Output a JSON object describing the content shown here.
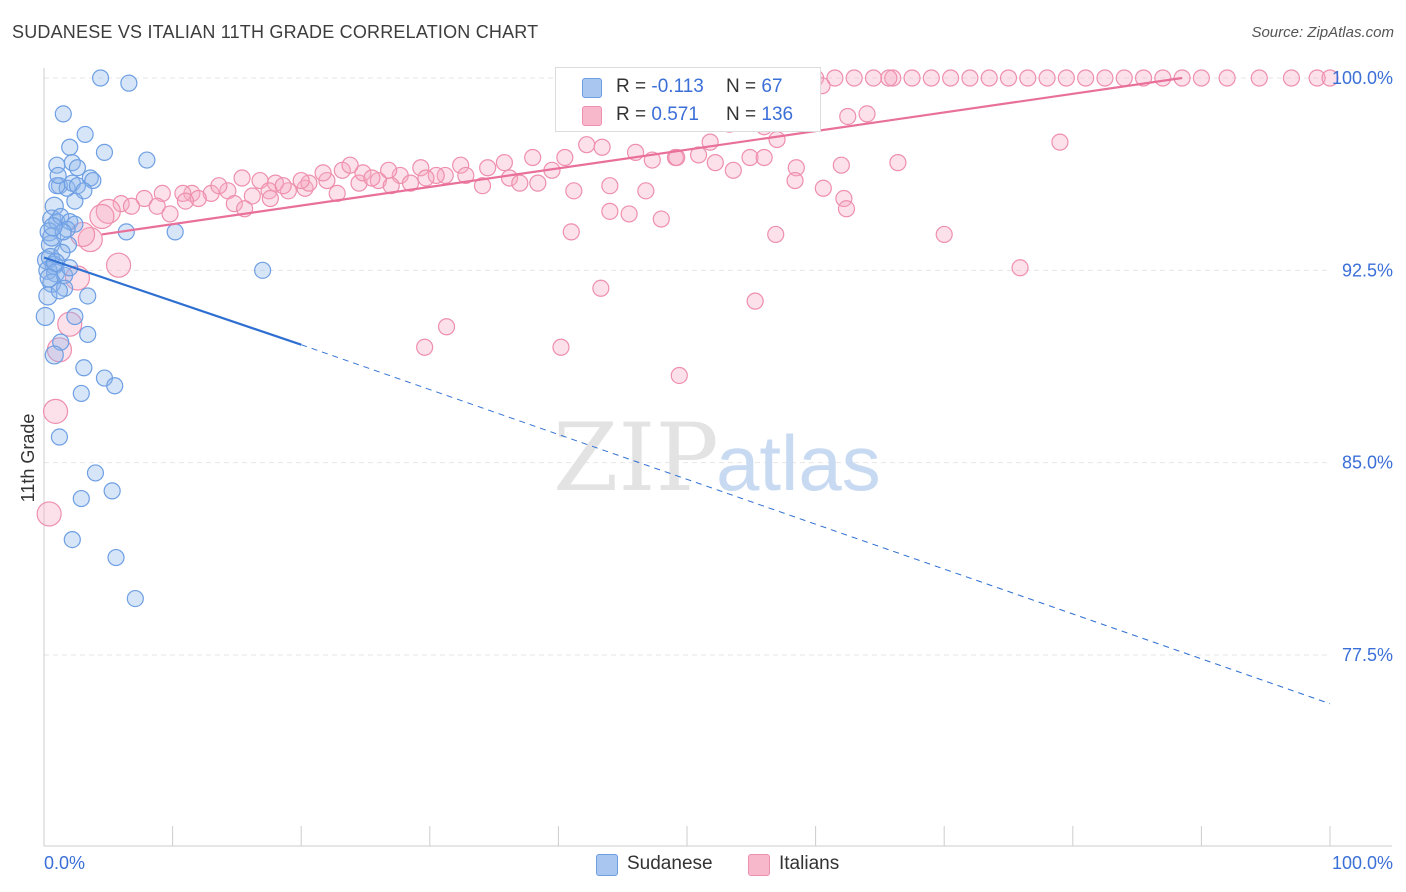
{
  "title": "SUDANESE VS ITALIAN 11TH GRADE CORRELATION CHART",
  "source": "Source: ZipAtlas.com",
  "watermark": {
    "zip": "ZIP",
    "atlas": "atlas"
  },
  "legend": {
    "r_label": "R =",
    "n_label": "N =",
    "rows": [
      {
        "r": "-0.113",
        "n": "67",
        "color": "#a9c6f0"
      },
      {
        "r": "0.571",
        "n": "136",
        "color": "#f7b8cb"
      }
    ]
  },
  "bottom_legend": [
    "Sudanese",
    "Italians"
  ],
  "colors": {
    "blue": "#6e9fe3",
    "blue_fill": "rgba(140,180,235,0.35)",
    "blue_line": "#2e6fd1",
    "pink": "#ee8fad",
    "pink_fill": "rgba(245,170,195,0.35)",
    "pink_line": "#e8709a",
    "axis_text": "#3b6fd8",
    "grid": "#e6e6e6"
  },
  "chart_data": {
    "type": "scatter",
    "title": "SUDANESE VS ITALIAN 11TH GRADE CORRELATION CHART",
    "xlabel": "",
    "ylabel": "11th Grade",
    "xlim": [
      0,
      100
    ],
    "ylim": [
      70,
      100.5
    ],
    "x_tick_labels": [
      "0.0%",
      "100.0%"
    ],
    "y_ticks": [
      77.5,
      85.0,
      92.5,
      100.0
    ],
    "y_tick_labels": [
      "77.5%",
      "85.0%",
      "92.5%",
      "100.0%"
    ],
    "grid": true,
    "legend_placement": "top-center",
    "series": [
      {
        "name": "Sudanese",
        "R": -0.113,
        "N": 67,
        "trend": {
          "x0": 0,
          "y0": 93.0,
          "x1": 20,
          "y1": 89.6,
          "dash_to_x": 100,
          "dash_to_y": 75.6
        },
        "points": [
          [
            4.4,
            100
          ],
          [
            6.6,
            99.8
          ],
          [
            1.5,
            98.6
          ],
          [
            3.2,
            97.8
          ],
          [
            4.7,
            97.1
          ],
          [
            8.0,
            96.8
          ],
          [
            2.0,
            97.3
          ],
          [
            1.0,
            96.6
          ],
          [
            2.2,
            96.7
          ],
          [
            2.6,
            96.5
          ],
          [
            3.6,
            96.1
          ],
          [
            3.8,
            96.0
          ],
          [
            1.2,
            95.8
          ],
          [
            1.8,
            95.7
          ],
          [
            2.2,
            95.9
          ],
          [
            2.6,
            95.8
          ],
          [
            1.0,
            95.8
          ],
          [
            0.8,
            95.0
          ],
          [
            2.4,
            95.2
          ],
          [
            0.6,
            94.5
          ],
          [
            1.0,
            94.4
          ],
          [
            1.3,
            94.6
          ],
          [
            2.0,
            94.4
          ],
          [
            2.4,
            94.3
          ],
          [
            0.4,
            94.0
          ],
          [
            1.8,
            94.1
          ],
          [
            6.4,
            94.0
          ],
          [
            10.2,
            94.0
          ],
          [
            0.5,
            93.5
          ],
          [
            1.9,
            93.5
          ],
          [
            0.2,
            92.9
          ],
          [
            0.5,
            93.0
          ],
          [
            0.8,
            92.7
          ],
          [
            0.3,
            92.5
          ],
          [
            0.9,
            92.4
          ],
          [
            1.6,
            92.3
          ],
          [
            0.6,
            92.0
          ],
          [
            1.6,
            91.8
          ],
          [
            0.3,
            91.5
          ],
          [
            3.4,
            91.5
          ],
          [
            17.0,
            92.5
          ],
          [
            0.1,
            90.7
          ],
          [
            2.4,
            90.7
          ],
          [
            3.4,
            90.0
          ],
          [
            1.3,
            89.7
          ],
          [
            0.8,
            89.2
          ],
          [
            3.1,
            88.7
          ],
          [
            4.7,
            88.3
          ],
          [
            5.5,
            88.0
          ],
          [
            2.9,
            87.7
          ],
          [
            1.2,
            86.0
          ],
          [
            4.0,
            84.6
          ],
          [
            5.3,
            83.9
          ],
          [
            2.9,
            83.6
          ],
          [
            2.2,
            82.0
          ],
          [
            5.6,
            81.3
          ],
          [
            7.1,
            79.7
          ],
          [
            0.6,
            93.8
          ],
          [
            1.4,
            93.2
          ],
          [
            0.9,
            92.8
          ],
          [
            1.5,
            94.0
          ],
          [
            3.1,
            95.6
          ],
          [
            1.1,
            96.2
          ],
          [
            0.7,
            94.2
          ],
          [
            2.0,
            92.6
          ],
          [
            1.2,
            91.7
          ],
          [
            0.4,
            92.2
          ]
        ]
      },
      {
        "name": "Italians",
        "R": 0.571,
        "N": 136,
        "trend": {
          "x0": 4.5,
          "y0": 93.9,
          "x1": 88.5,
          "y1": 100.0
        },
        "points": [
          [
            55,
            100
          ],
          [
            57,
            100
          ],
          [
            58.5,
            100
          ],
          [
            60,
            100
          ],
          [
            61.5,
            100
          ],
          [
            63,
            100
          ],
          [
            64.5,
            100
          ],
          [
            66,
            100
          ],
          [
            67.5,
            100
          ],
          [
            69,
            100
          ],
          [
            70.5,
            100
          ],
          [
            72,
            100
          ],
          [
            73.5,
            100
          ],
          [
            75,
            100
          ],
          [
            76.5,
            100
          ],
          [
            78,
            100
          ],
          [
            79.5,
            100
          ],
          [
            81,
            100
          ],
          [
            82.5,
            100
          ],
          [
            84,
            100
          ],
          [
            85.5,
            100
          ],
          [
            87,
            100
          ],
          [
            88.5,
            100
          ],
          [
            90,
            100
          ],
          [
            92,
            100
          ],
          [
            94.5,
            100
          ],
          [
            97,
            100
          ],
          [
            99,
            100
          ],
          [
            100,
            100
          ],
          [
            65.7,
            100
          ],
          [
            60.5,
            99.7
          ],
          [
            62.5,
            98.5
          ],
          [
            64,
            98.6
          ],
          [
            56.0,
            98.1
          ],
          [
            53.3,
            98.2
          ],
          [
            51.8,
            97.5
          ],
          [
            42.2,
            97.4
          ],
          [
            43.4,
            97.3
          ],
          [
            46.0,
            97.1
          ],
          [
            47.3,
            96.8
          ],
          [
            49.1,
            96.9
          ],
          [
            50.9,
            97.0
          ],
          [
            52.2,
            96.7
          ],
          [
            54.9,
            96.9
          ],
          [
            57.0,
            97.6
          ],
          [
            56.0,
            96.9
          ],
          [
            53.6,
            96.4
          ],
          [
            58.5,
            96.5
          ],
          [
            62.0,
            96.6
          ],
          [
            66.4,
            96.7
          ],
          [
            79.0,
            97.5
          ],
          [
            38.0,
            96.9
          ],
          [
            40.5,
            96.9
          ],
          [
            35.8,
            96.7
          ],
          [
            34.5,
            96.5
          ],
          [
            32.4,
            96.6
          ],
          [
            31.2,
            96.2
          ],
          [
            29.3,
            96.5
          ],
          [
            27.7,
            96.2
          ],
          [
            26.0,
            96.0
          ],
          [
            24.5,
            95.9
          ],
          [
            23.2,
            96.4
          ],
          [
            22.0,
            96.0
          ],
          [
            20.3,
            95.7
          ],
          [
            19.0,
            95.6
          ],
          [
            18.0,
            95.9
          ],
          [
            16.8,
            96.0
          ],
          [
            15.4,
            96.1
          ],
          [
            14.3,
            95.6
          ],
          [
            13.0,
            95.5
          ],
          [
            11.5,
            95.5
          ],
          [
            10.8,
            95.5
          ],
          [
            9.2,
            95.5
          ],
          [
            7.8,
            95.3
          ],
          [
            6.0,
            95.1
          ],
          [
            5.0,
            94.8
          ],
          [
            8.8,
            95.0
          ],
          [
            12.0,
            95.3
          ],
          [
            14.8,
            95.1
          ],
          [
            17.5,
            95.6
          ],
          [
            20.6,
            95.9
          ],
          [
            22.8,
            95.5
          ],
          [
            24.8,
            96.3
          ],
          [
            26.8,
            96.4
          ],
          [
            28.5,
            95.9
          ],
          [
            30.5,
            96.2
          ],
          [
            32.8,
            96.2
          ],
          [
            34.1,
            95.8
          ],
          [
            36.2,
            96.1
          ],
          [
            38.4,
            95.9
          ],
          [
            39.5,
            96.4
          ],
          [
            41.2,
            95.6
          ],
          [
            44.0,
            95.8
          ],
          [
            45.5,
            94.7
          ],
          [
            46.8,
            95.6
          ],
          [
            48.0,
            94.5
          ],
          [
            49.2,
            96.9
          ],
          [
            20.0,
            96.0
          ],
          [
            21.7,
            96.3
          ],
          [
            23.8,
            96.6
          ],
          [
            25.5,
            96.1
          ],
          [
            27.0,
            95.8
          ],
          [
            29.7,
            96.1
          ],
          [
            11.0,
            95.2
          ],
          [
            13.6,
            95.8
          ],
          [
            16.2,
            95.4
          ],
          [
            18.6,
            95.8
          ],
          [
            9.8,
            94.7
          ],
          [
            4.5,
            94.6
          ],
          [
            6.8,
            95.0
          ],
          [
            15.6,
            94.9
          ],
          [
            17.6,
            95.3
          ],
          [
            60.6,
            95.7
          ],
          [
            62.2,
            95.3
          ],
          [
            58.4,
            96.0
          ],
          [
            62.4,
            94.9
          ],
          [
            70.0,
            93.9
          ],
          [
            56.9,
            93.9
          ],
          [
            75.9,
            92.6
          ],
          [
            43.3,
            91.8
          ],
          [
            55.3,
            91.3
          ],
          [
            31.3,
            90.3
          ],
          [
            29.6,
            89.5
          ],
          [
            40.2,
            89.5
          ],
          [
            49.4,
            88.4
          ],
          [
            3.6,
            93.7
          ],
          [
            2.6,
            92.2
          ],
          [
            2.0,
            90.4
          ],
          [
            1.2,
            89.4
          ],
          [
            0.9,
            87.0
          ],
          [
            0.4,
            83.0
          ],
          [
            5.8,
            92.7
          ],
          [
            3.0,
            93.9
          ],
          [
            44.0,
            94.8
          ],
          [
            41.0,
            94.0
          ],
          [
            37.0,
            95.9
          ]
        ]
      }
    ]
  }
}
